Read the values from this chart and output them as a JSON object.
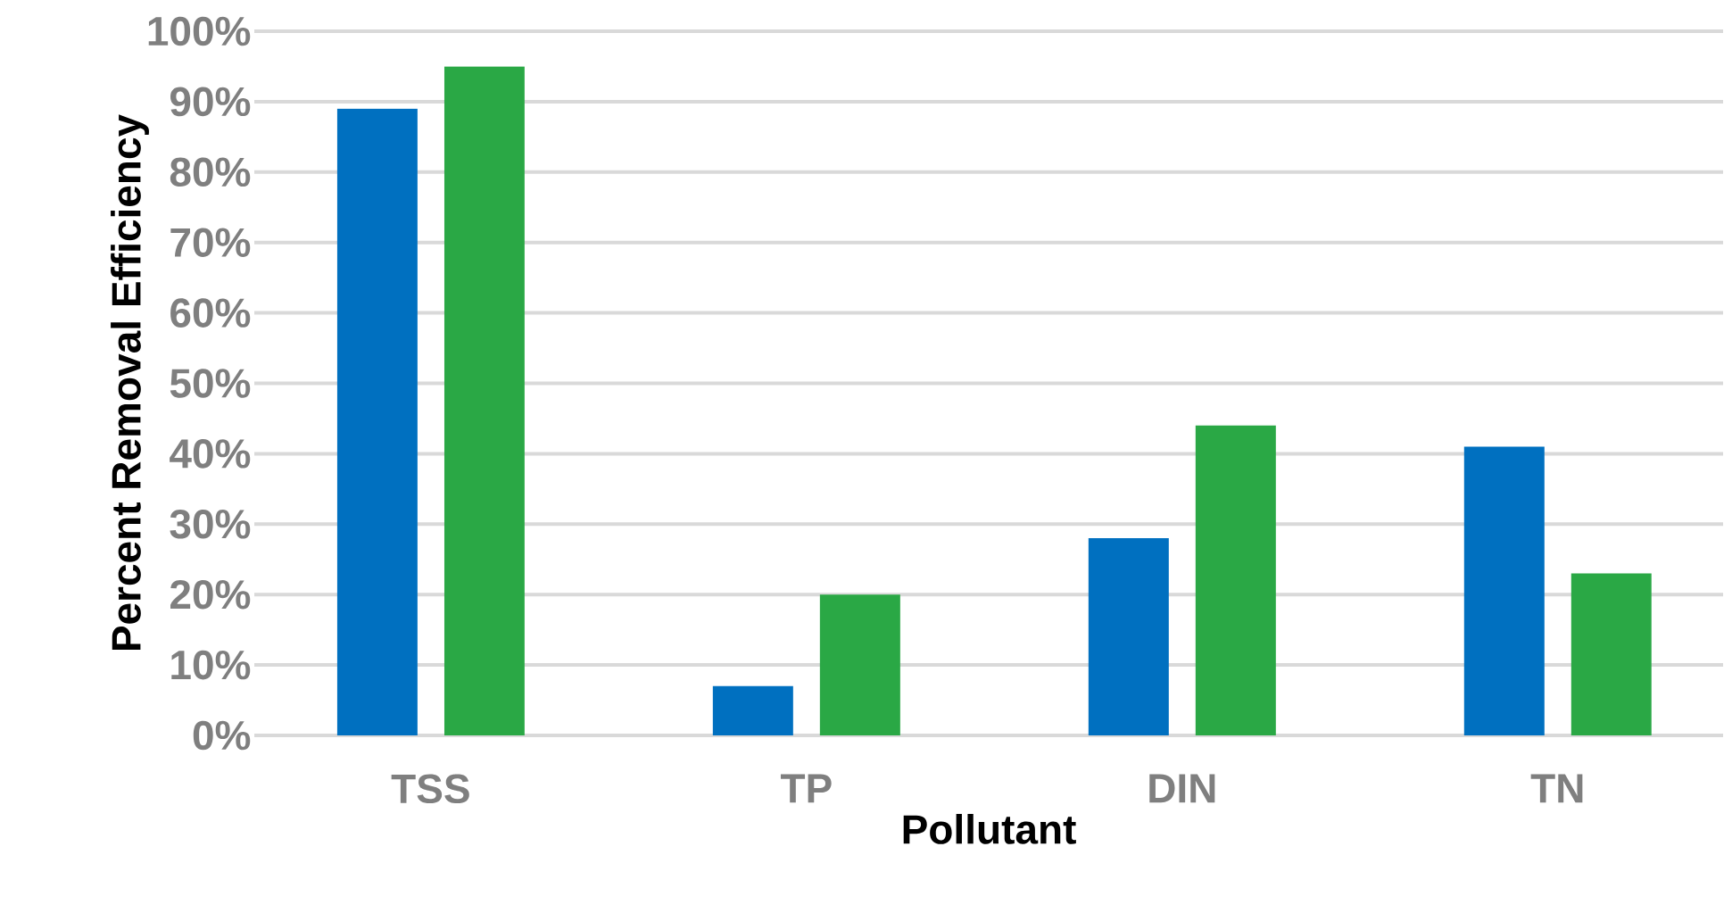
{
  "chart_data": {
    "type": "bar",
    "xlabel": "Pollutant",
    "ylabel": "Percent Removal Efficiency",
    "categories": [
      "TSS",
      "TP",
      "DIN",
      "TN"
    ],
    "series": [
      {
        "color": "#0070c0",
        "values": [
          89,
          7,
          28,
          41
        ]
      },
      {
        "color": "#2aa845",
        "values": [
          95,
          20,
          44,
          23
        ]
      }
    ],
    "ylim": [
      0,
      100
    ],
    "yticks": [
      {
        "value": 0,
        "label": "0%"
      },
      {
        "value": 10,
        "label": "10%"
      },
      {
        "value": 20,
        "label": "20%"
      },
      {
        "value": 30,
        "label": "30%"
      },
      {
        "value": 40,
        "label": "40%"
      },
      {
        "value": 50,
        "label": "50%"
      },
      {
        "value": 60,
        "label": "60%"
      },
      {
        "value": 70,
        "label": "70%"
      },
      {
        "value": 80,
        "label": "80%"
      },
      {
        "value": 90,
        "label": "90%"
      },
      {
        "value": 100,
        "label": "100%"
      }
    ],
    "grid": "y"
  }
}
